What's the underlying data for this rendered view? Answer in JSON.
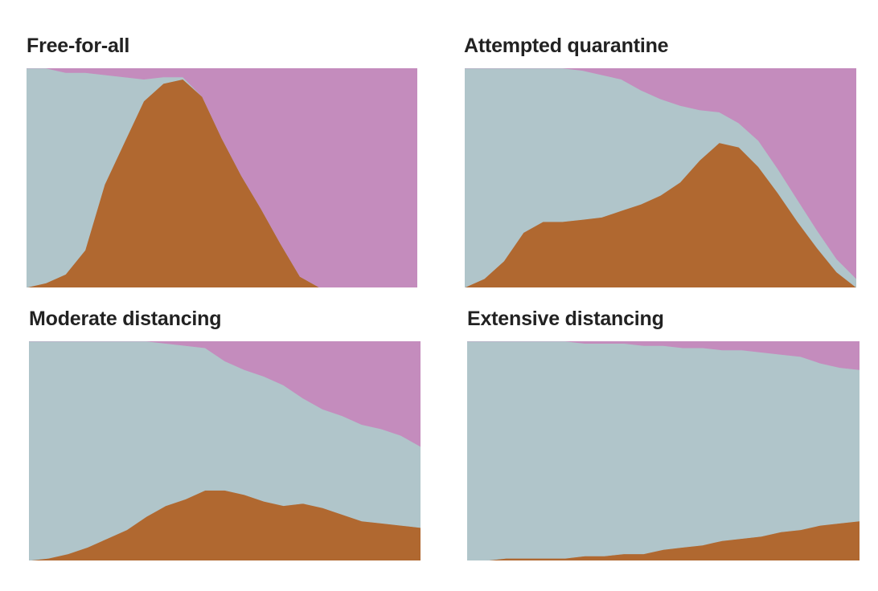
{
  "colors": {
    "susceptible": "#b0c5ca",
    "infected": "#b06830",
    "recovered": "#c48cbd"
  },
  "chart_data": [
    {
      "type": "area",
      "title": "Free-for-all",
      "stacked": true,
      "x": [
        0,
        5,
        10,
        15,
        20,
        25,
        30,
        35,
        40,
        45,
        50,
        55,
        60,
        65,
        70,
        75,
        80,
        85,
        90,
        95,
        100
      ],
      "series": [
        {
          "role": "infected",
          "color": "#b06830",
          "values": [
            0,
            2,
            6,
            17,
            47,
            66,
            85,
            93,
            95,
            87,
            68,
            51,
            36,
            20,
            5,
            0,
            0,
            0,
            0,
            0,
            0
          ]
        },
        {
          "role": "susceptible",
          "color": "#b0c5ca",
          "values": [
            100,
            98,
            92,
            81,
            50,
            30,
            10,
            3,
            1,
            0,
            0,
            0,
            0,
            0,
            0,
            0,
            0,
            0,
            0,
            0,
            0
          ]
        },
        {
          "role": "recovered",
          "color": "#c48cbd",
          "values": [
            0,
            0,
            2,
            2,
            3,
            4,
            5,
            4,
            4,
            13,
            32,
            49,
            64,
            80,
            95,
            100,
            100,
            100,
            100,
            100,
            100
          ]
        }
      ],
      "ylim": [
        0,
        100
      ],
      "grid": false
    },
    {
      "type": "area",
      "title": "Attempted quarantine",
      "stacked": true,
      "x": [
        0,
        5,
        10,
        15,
        20,
        25,
        30,
        35,
        40,
        45,
        50,
        55,
        60,
        65,
        70,
        75,
        80,
        85,
        90,
        95,
        100
      ],
      "series": [
        {
          "role": "infected",
          "color": "#b06830",
          "values": [
            0,
            4,
            12,
            25,
            30,
            30,
            31,
            32,
            35,
            38,
            42,
            48,
            58,
            66,
            64,
            55,
            43,
            30,
            18,
            7,
            0
          ]
        },
        {
          "role": "susceptible",
          "color": "#b0c5ca",
          "values": [
            100,
            96,
            88,
            75,
            70,
            70,
            68,
            65,
            60,
            52,
            44,
            35,
            23,
            14,
            11,
            12,
            11,
            10,
            8,
            6,
            4
          ]
        },
        {
          "role": "recovered",
          "color": "#c48cbd",
          "values": [
            0,
            0,
            0,
            0,
            0,
            0,
            1,
            3,
            5,
            10,
            14,
            17,
            19,
            20,
            25,
            33,
            46,
            60,
            74,
            87,
            96
          ]
        }
      ],
      "ylim": [
        0,
        100
      ],
      "grid": false
    },
    {
      "type": "area",
      "title": "Moderate distancing",
      "stacked": true,
      "x": [
        0,
        5,
        10,
        15,
        20,
        25,
        30,
        35,
        40,
        45,
        50,
        55,
        60,
        65,
        70,
        75,
        80,
        85,
        90,
        95,
        100
      ],
      "series": [
        {
          "role": "infected",
          "color": "#b06830",
          "values": [
            0,
            1,
            3,
            6,
            10,
            14,
            20,
            25,
            28,
            32,
            32,
            30,
            27,
            25,
            26,
            24,
            21,
            18,
            17,
            16,
            15
          ]
        },
        {
          "role": "susceptible",
          "color": "#b0c5ca",
          "values": [
            100,
            99,
            97,
            94,
            90,
            86,
            80,
            74,
            70,
            65,
            59,
            57,
            57,
            55,
            48,
            45,
            45,
            44,
            43,
            41,
            37
          ]
        },
        {
          "role": "recovered",
          "color": "#c48cbd",
          "values": [
            0,
            0,
            0,
            0,
            0,
            0,
            0,
            1,
            2,
            3,
            9,
            13,
            16,
            20,
            26,
            31,
            34,
            38,
            40,
            43,
            48
          ]
        }
      ],
      "ylim": [
        0,
        100
      ],
      "grid": false
    },
    {
      "type": "area",
      "title": "Extensive distancing",
      "stacked": true,
      "x": [
        0,
        5,
        10,
        15,
        20,
        25,
        30,
        35,
        40,
        45,
        50,
        55,
        60,
        65,
        70,
        75,
        80,
        85,
        90,
        95,
        100
      ],
      "series": [
        {
          "role": "infected",
          "color": "#b06830",
          "values": [
            0,
            0,
            1,
            1,
            1,
            1,
            2,
            2,
            3,
            3,
            5,
            6,
            7,
            9,
            10,
            11,
            13,
            14,
            16,
            17,
            18
          ]
        },
        {
          "role": "susceptible",
          "color": "#b0c5ca",
          "values": [
            100,
            100,
            99,
            99,
            99,
            99,
            97,
            97,
            96,
            95,
            93,
            91,
            90,
            87,
            86,
            84,
            81,
            79,
            74,
            71,
            69
          ]
        },
        {
          "role": "recovered",
          "color": "#c48cbd",
          "values": [
            0,
            0,
            0,
            0,
            0,
            0,
            1,
            1,
            1,
            2,
            2,
            3,
            3,
            4,
            4,
            5,
            6,
            7,
            10,
            12,
            13
          ]
        }
      ],
      "ylim": [
        0,
        100
      ],
      "grid": false
    }
  ]
}
